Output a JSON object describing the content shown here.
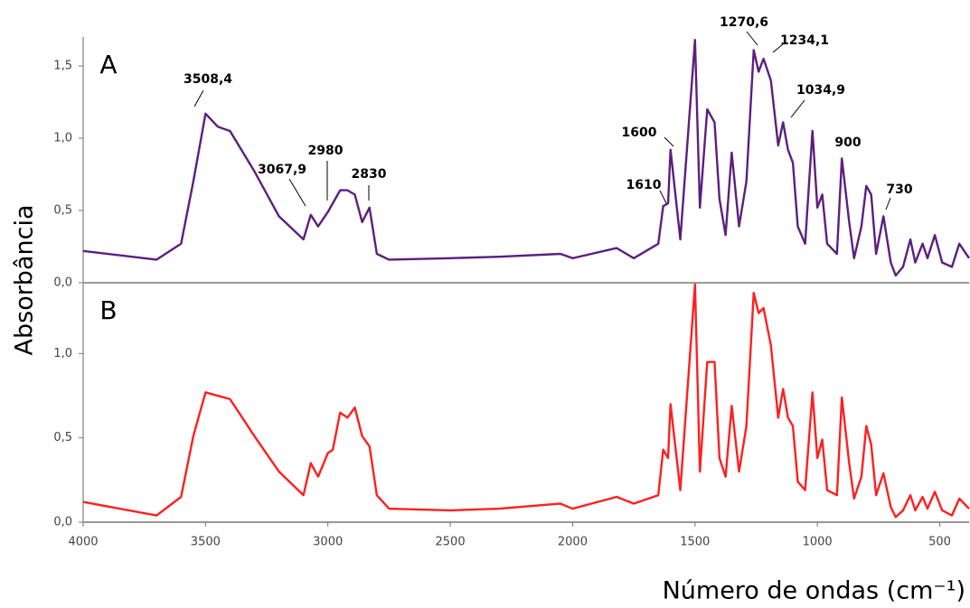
{
  "chart_data": [
    {
      "type": "line",
      "label": "A",
      "ylabel": "Absorbância",
      "x": [
        4000,
        3700,
        3600,
        3550,
        3500,
        3450,
        3400,
        3300,
        3200,
        3100,
        3070,
        3040,
        3000,
        2980,
        2950,
        2920,
        2890,
        2860,
        2830,
        2800,
        2750,
        2500,
        2300,
        2050,
        2000,
        1820,
        1750,
        1650,
        1630,
        1610,
        1600,
        1560,
        1500,
        1480,
        1450,
        1420,
        1400,
        1375,
        1350,
        1320,
        1290,
        1260,
        1240,
        1220,
        1190,
        1160,
        1140,
        1120,
        1100,
        1080,
        1050,
        1020,
        1000,
        980,
        960,
        920,
        900,
        870,
        850,
        820,
        800,
        780,
        760,
        730,
        700,
        680,
        650,
        620,
        600,
        570,
        550,
        520,
        490,
        450,
        420,
        380
      ],
      "series": [
        {
          "color": "#5c1f7f",
          "values": [
            0.22,
            0.16,
            0.27,
            0.7,
            1.17,
            1.08,
            1.05,
            0.77,
            0.46,
            0.3,
            0.47,
            0.39,
            0.49,
            0.55,
            0.64,
            0.64,
            0.61,
            0.42,
            0.52,
            0.2,
            0.16,
            0.17,
            0.18,
            0.2,
            0.17,
            0.24,
            0.17,
            0.27,
            0.53,
            0.55,
            0.92,
            0.3,
            1.68,
            0.52,
            1.2,
            1.11,
            0.58,
            0.33,
            0.9,
            0.39,
            0.7,
            1.61,
            1.46,
            1.55,
            1.4,
            0.95,
            1.11,
            0.92,
            0.83,
            0.39,
            0.27,
            1.05,
            0.52,
            0.61,
            0.27,
            0.2,
            0.86,
            0.42,
            0.17,
            0.39,
            0.67,
            0.61,
            0.2,
            0.46,
            0.14,
            0.05,
            0.11,
            0.3,
            0.14,
            0.27,
            0.17,
            0.33,
            0.14,
            0.11,
            0.27,
            0.17
          ]
        }
      ],
      "xlim": [
        4000,
        380
      ],
      "ylim": [
        0,
        1.7
      ],
      "yticks": [
        {
          "value": 0,
          "label": "0,0"
        },
        {
          "value": 0.5,
          "label": "0,5"
        },
        {
          "value": 1.0,
          "label": "1,0"
        },
        {
          "value": 1.5,
          "label": "1,5"
        }
      ],
      "annotations": [
        "3508,4",
        "3067,9",
        "2980",
        "2830",
        "1600",
        "1610",
        "1270,6",
        "1234,1",
        "1034,9",
        "900",
        "730"
      ]
    },
    {
      "type": "line",
      "label": "B",
      "xlabel": "Número de ondas (cm⁻¹)",
      "x": [
        4000,
        3700,
        3600,
        3550,
        3500,
        3450,
        3400,
        3300,
        3200,
        3100,
        3070,
        3040,
        3000,
        2980,
        2950,
        2920,
        2890,
        2860,
        2830,
        2800,
        2750,
        2500,
        2300,
        2050,
        2000,
        1820,
        1750,
        1650,
        1630,
        1610,
        1600,
        1560,
        1500,
        1480,
        1450,
        1420,
        1400,
        1375,
        1350,
        1320,
        1290,
        1260,
        1240,
        1220,
        1190,
        1160,
        1140,
        1120,
        1100,
        1080,
        1050,
        1020,
        1000,
        980,
        960,
        920,
        900,
        870,
        850,
        820,
        800,
        780,
        760,
        730,
        700,
        680,
        650,
        620,
        600,
        570,
        550,
        520,
        490,
        450,
        420,
        380
      ],
      "series": [
        {
          "color": "#ff1f1f",
          "values": [
            0.12,
            0.04,
            0.15,
            0.51,
            0.77,
            0.75,
            0.73,
            0.51,
            0.3,
            0.16,
            0.35,
            0.27,
            0.41,
            0.43,
            0.65,
            0.62,
            0.68,
            0.51,
            0.45,
            0.16,
            0.08,
            0.07,
            0.08,
            0.11,
            0.08,
            0.15,
            0.11,
            0.16,
            0.43,
            0.38,
            0.7,
            0.19,
            1.41,
            0.3,
            0.95,
            0.95,
            0.38,
            0.27,
            0.69,
            0.3,
            0.57,
            1.36,
            1.24,
            1.27,
            1.05,
            0.62,
            0.79,
            0.62,
            0.57,
            0.24,
            0.19,
            0.77,
            0.38,
            0.49,
            0.19,
            0.16,
            0.74,
            0.35,
            0.14,
            0.27,
            0.57,
            0.46,
            0.16,
            0.29,
            0.09,
            0.03,
            0.07,
            0.16,
            0.07,
            0.15,
            0.08,
            0.18,
            0.07,
            0.04,
            0.14,
            0.08
          ]
        }
      ],
      "xlim": [
        4000,
        380
      ],
      "ylim": [
        0,
        1.42
      ],
      "xticks": [
        4000,
        3500,
        3000,
        2500,
        2000,
        1500,
        1000,
        500
      ],
      "yticks": [
        {
          "value": 0,
          "label": "0,0"
        },
        {
          "value": 0.5,
          "label": "0,5"
        },
        {
          "value": 1.0,
          "label": "1,0"
        }
      ]
    }
  ]
}
